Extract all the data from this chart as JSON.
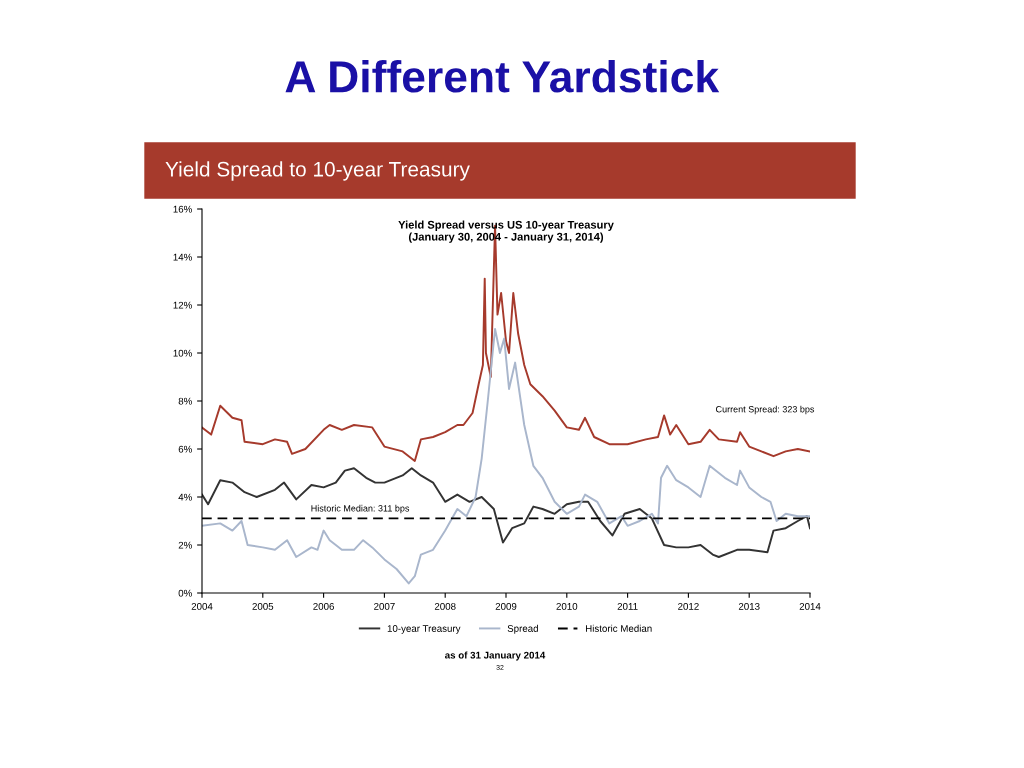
{
  "chart_data": {
    "type": "line",
    "title": "A Different Yardstick",
    "subtitle": "Yield Spread to 10-year Treasury",
    "annotations": [
      "Yield Spread versus US 10-year Treasury\n(January 30, 2004 - January 31, 2014)",
      {
        "text": "Historic Median: 311 bps",
        "x": 2006.6,
        "y": 3.11
      },
      "Current Spread: 323 bps",
      "as of 31 January 2014",
      "32"
    ],
    "xlim": [
      2004,
      2014
    ],
    "xticks": [
      2004,
      2005,
      2006,
      2007,
      2008,
      2009,
      2010,
      2011,
      2012,
      2013,
      2014
    ],
    "ylim": [
      0,
      16
    ],
    "yticks": [
      {
        "value": 0,
        "label": "0%"
      },
      {
        "value": 2,
        "label": "2%"
      },
      {
        "value": 4,
        "label": "4%"
      },
      {
        "value": 6,
        "label": "6%"
      },
      {
        "value": 8,
        "label": "8%"
      },
      {
        "value": 10,
        "label": "10%"
      },
      {
        "value": 12,
        "label": "12%"
      },
      {
        "value": 14,
        "label": "14%"
      },
      {
        "value": 16,
        "label": "16%"
      }
    ],
    "grid": false,
    "legend": "bottom",
    "marker": "none",
    "series": [
      {
        "color": "#a63a2c",
        "x": [
          2004.0,
          2004.15,
          2004.3,
          2004.5,
          2004.65,
          2004.7,
          2005.0,
          2005.2,
          2005.4,
          2005.48,
          2005.7,
          2006.0,
          2006.1,
          2006.3,
          2006.5,
          2006.8,
          2007.0,
          2007.3,
          2007.5,
          2007.6,
          2007.8,
          2008.0,
          2008.2,
          2008.3,
          2008.45,
          2008.55,
          2008.62,
          2008.65,
          2008.67,
          2008.75,
          2008.82,
          2008.86,
          2008.92,
          2009.0,
          2009.05,
          2009.12,
          2009.2,
          2009.3,
          2009.4,
          2009.6,
          2009.8,
          2010.0,
          2010.2,
          2010.3,
          2010.45,
          2010.7,
          2011.0,
          2011.3,
          2011.5,
          2011.6,
          2011.7,
          2011.8,
          2012.0,
          2012.2,
          2012.35,
          2012.5,
          2012.8,
          2012.85,
          2013.0,
          2013.2,
          2013.4,
          2013.6,
          2013.8,
          2014.0
        ],
        "values": [
          6.9,
          6.6,
          7.8,
          7.3,
          7.2,
          6.3,
          6.2,
          6.4,
          6.3,
          5.8,
          6.0,
          6.8,
          7.0,
          6.8,
          7.0,
          6.9,
          6.1,
          5.9,
          5.5,
          6.4,
          6.5,
          6.7,
          7.0,
          7.0,
          7.5,
          8.7,
          9.5,
          13.1,
          10.0,
          9.0,
          15.3,
          11.6,
          12.5,
          10.5,
          10.0,
          12.5,
          10.8,
          9.5,
          8.7,
          8.2,
          7.6,
          6.9,
          6.8,
          7.3,
          6.5,
          6.2,
          6.2,
          6.4,
          6.5,
          7.4,
          6.6,
          7.0,
          6.2,
          6.3,
          6.8,
          6.4,
          6.3,
          6.7,
          6.1,
          5.9,
          5.7,
          5.9,
          6.0,
          5.9
        ]
      },
      {
        "name": "10-year Treasury",
        "color": "#333333",
        "x": [
          2004.0,
          2004.1,
          2004.3,
          2004.5,
          2004.7,
          2004.9,
          2005.2,
          2005.35,
          2005.55,
          2005.8,
          2006.0,
          2006.2,
          2006.35,
          2006.5,
          2006.7,
          2006.85,
          2007.0,
          2007.3,
          2007.45,
          2007.6,
          2007.8,
          2008.0,
          2008.2,
          2008.4,
          2008.6,
          2008.8,
          2008.95,
          2009.1,
          2009.3,
          2009.45,
          2009.6,
          2009.8,
          2010.0,
          2010.2,
          2010.35,
          2010.55,
          2010.75,
          2010.95,
          2011.2,
          2011.4,
          2011.6,
          2011.8,
          2012.0,
          2012.2,
          2012.4,
          2012.5,
          2012.8,
          2013.0,
          2013.3,
          2013.4,
          2013.6,
          2013.8,
          2013.95,
          2014.0
        ],
        "values": [
          4.1,
          3.7,
          4.7,
          4.6,
          4.2,
          4.0,
          4.3,
          4.6,
          3.9,
          4.5,
          4.4,
          4.6,
          5.1,
          5.2,
          4.8,
          4.6,
          4.6,
          4.9,
          5.2,
          4.9,
          4.6,
          3.8,
          4.1,
          3.8,
          4.0,
          3.5,
          2.1,
          2.7,
          2.9,
          3.6,
          3.5,
          3.3,
          3.7,
          3.8,
          3.8,
          3.0,
          2.4,
          3.3,
          3.5,
          3.1,
          2.0,
          1.9,
          1.9,
          2.0,
          1.6,
          1.5,
          1.8,
          1.8,
          1.7,
          2.6,
          2.7,
          3.0,
          3.2,
          2.7
        ]
      },
      {
        "name": "Spread",
        "color": "#a9b6cc",
        "x": [
          2004.0,
          2004.3,
          2004.5,
          2004.65,
          2004.75,
          2005.0,
          2005.2,
          2005.4,
          2005.55,
          2005.8,
          2005.9,
          2006.0,
          2006.1,
          2006.3,
          2006.5,
          2006.65,
          2006.8,
          2007.0,
          2007.2,
          2007.4,
          2007.5,
          2007.6,
          2007.8,
          2008.0,
          2008.2,
          2008.35,
          2008.5,
          2008.6,
          2008.7,
          2008.82,
          2008.9,
          2008.97,
          2009.05,
          2009.15,
          2009.3,
          2009.45,
          2009.6,
          2009.8,
          2010.0,
          2010.2,
          2010.3,
          2010.5,
          2010.7,
          2010.9,
          2011.0,
          2011.2,
          2011.4,
          2011.5,
          2011.55,
          2011.65,
          2011.8,
          2012.0,
          2012.2,
          2012.35,
          2012.6,
          2012.8,
          2012.85,
          2013.0,
          2013.2,
          2013.35,
          2013.45,
          2013.6,
          2013.8,
          2014.0
        ],
        "values": [
          2.8,
          2.9,
          2.6,
          3.0,
          2.0,
          1.9,
          1.8,
          2.2,
          1.5,
          1.9,
          1.8,
          2.6,
          2.2,
          1.8,
          1.8,
          2.2,
          1.9,
          1.4,
          1.0,
          0.4,
          0.7,
          1.6,
          1.8,
          2.6,
          3.5,
          3.2,
          4.0,
          5.6,
          8.0,
          11.0,
          10.0,
          10.6,
          8.5,
          9.6,
          7.0,
          5.3,
          4.8,
          3.8,
          3.3,
          3.6,
          4.1,
          3.8,
          2.9,
          3.2,
          2.8,
          3.0,
          3.3,
          2.9,
          4.8,
          5.3,
          4.7,
          4.4,
          4.0,
          5.3,
          4.8,
          4.5,
          5.1,
          4.4,
          4.0,
          3.8,
          3.0,
          3.3,
          3.2,
          3.2
        ]
      },
      {
        "name": "Historic Median",
        "color": "#000000",
        "line_style": "dashed",
        "x": [
          2004,
          2014
        ],
        "values": [
          3.11,
          3.11
        ]
      }
    ]
  }
}
